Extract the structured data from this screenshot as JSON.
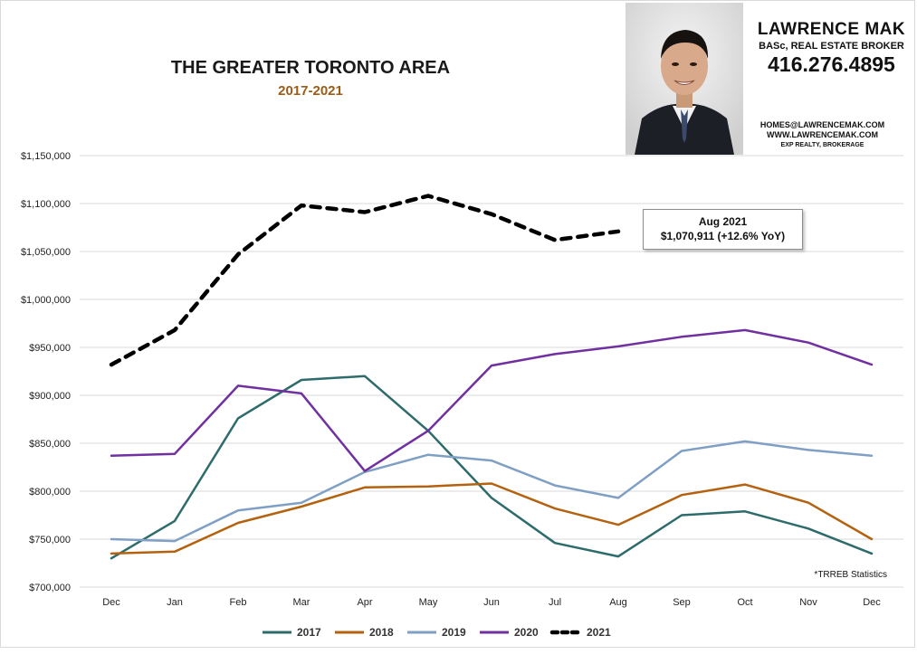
{
  "header": {
    "title": "THE GREATER TORONTO AREA",
    "subtitle": "2017-2021"
  },
  "agent": {
    "name": "LAWRENCE MAK",
    "role": "BASc, REAL ESTATE BROKER",
    "phone": "416.276.4895",
    "email": "HOMES@LAWRENCEMAK.COM",
    "website": "WWW.LAWRENCEMAK.COM",
    "brokerage": "EXP REALTY, BROKERAGE"
  },
  "callout": {
    "line1": "Aug 2021",
    "line2": "$1,070,911  (+12.6%  YoY)"
  },
  "source_note": "*TRREB Statistics",
  "colors": {
    "2017": "#2e6b6b",
    "2018": "#b4620f",
    "2019": "#7f9fc4",
    "2020": "#7030a0",
    "2021": "#000000",
    "grid": "#d9d9d9"
  },
  "chart_data": {
    "type": "line",
    "categories": [
      "Dec",
      "Jan",
      "Feb",
      "Mar",
      "Apr",
      "May",
      "Jun",
      "Jul",
      "Aug",
      "Sep",
      "Oct",
      "Nov",
      "Dec"
    ],
    "ylim": [
      700000,
      1150000
    ],
    "yticks": [
      700000,
      750000,
      800000,
      850000,
      900000,
      950000,
      1000000,
      1050000,
      1100000,
      1150000
    ],
    "ytick_labels": [
      "$700,000",
      "$750,000",
      "$800,000",
      "$850,000",
      "$900,000",
      "$950,000",
      "$1,000,000",
      "$1,050,000",
      "$1,100,000",
      "$1,150,000"
    ],
    "grid": true,
    "legend_position": "bottom",
    "series": [
      {
        "name": "2017",
        "values": [
          730000,
          769000,
          876000,
          916000,
          920000,
          863000,
          793000,
          746000,
          732000,
          775000,
          779000,
          761000,
          735000
        ]
      },
      {
        "name": "2018",
        "values": [
          735000,
          737000,
          767000,
          784000,
          804000,
          805000,
          808000,
          782000,
          765000,
          796000,
          807000,
          788000,
          750000
        ]
      },
      {
        "name": "2019",
        "values": [
          750000,
          748000,
          780000,
          788000,
          820000,
          838000,
          832000,
          806000,
          793000,
          842000,
          852000,
          843000,
          837000
        ]
      },
      {
        "name": "2020",
        "values": [
          837000,
          839000,
          910000,
          902000,
          821000,
          863000,
          931000,
          943000,
          951000,
          961000,
          968000,
          955000,
          932000
        ]
      },
      {
        "name": "2021",
        "values": [
          932000,
          968000,
          1047000,
          1098000,
          1091000,
          1108000,
          1089000,
          1062000,
          1070911,
          null,
          null,
          null,
          null
        ]
      }
    ]
  }
}
